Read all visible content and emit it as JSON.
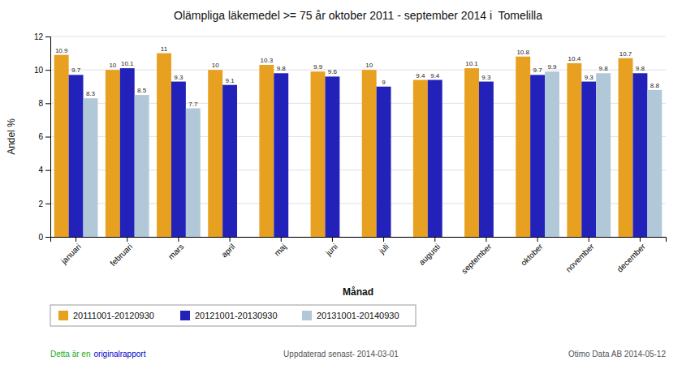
{
  "chart_data": {
    "type": "bar",
    "title": "Olämpliga läkemedel >= 75 år oktober 2011 - september 2014 i  Tomelilla",
    "xlabel": "Månad",
    "ylabel": "Andel %",
    "categories": [
      "januari",
      "februari",
      "mars",
      "april",
      "maj",
      "juni",
      "juli",
      "augusti",
      "september",
      "oktober",
      "november",
      "december"
    ],
    "series": [
      {
        "name": "20111001-20120930",
        "color": "#E8A020",
        "values": [
          10.9,
          10.0,
          11.0,
          10.0,
          10.3,
          9.9,
          10.0,
          9.4,
          10.1,
          10.8,
          10.4,
          10.7
        ]
      },
      {
        "name": "20121001-20130930",
        "color": "#2222BB",
        "values": [
          9.7,
          10.1,
          9.3,
          9.1,
          9.8,
          9.6,
          9.0,
          9.4,
          9.3,
          9.7,
          9.3,
          9.8
        ]
      },
      {
        "name": "20131001-20140930",
        "color": "#B0C8D8",
        "values": [
          8.3,
          8.5,
          7.7,
          null,
          null,
          null,
          null,
          null,
          null,
          9.9,
          9.8,
          8.8
        ]
      }
    ],
    "ylim": [
      0,
      12
    ],
    "yticks": [
      0,
      2,
      4,
      6,
      8,
      10,
      12
    ],
    "grid": true,
    "legend": "bottom",
    "data_labels": true,
    "annotations": [
      {
        "text": "Detta är en",
        "color": "#22AA22"
      },
      {
        "text": "originalrapport",
        "color": "#0000CC"
      },
      {
        "text": "Uppdaterad senast- 2014-03-01",
        "color": "#555555"
      },
      {
        "text": "Otimo Data AB 2014-05-12",
        "color": "#555555"
      }
    ]
  }
}
